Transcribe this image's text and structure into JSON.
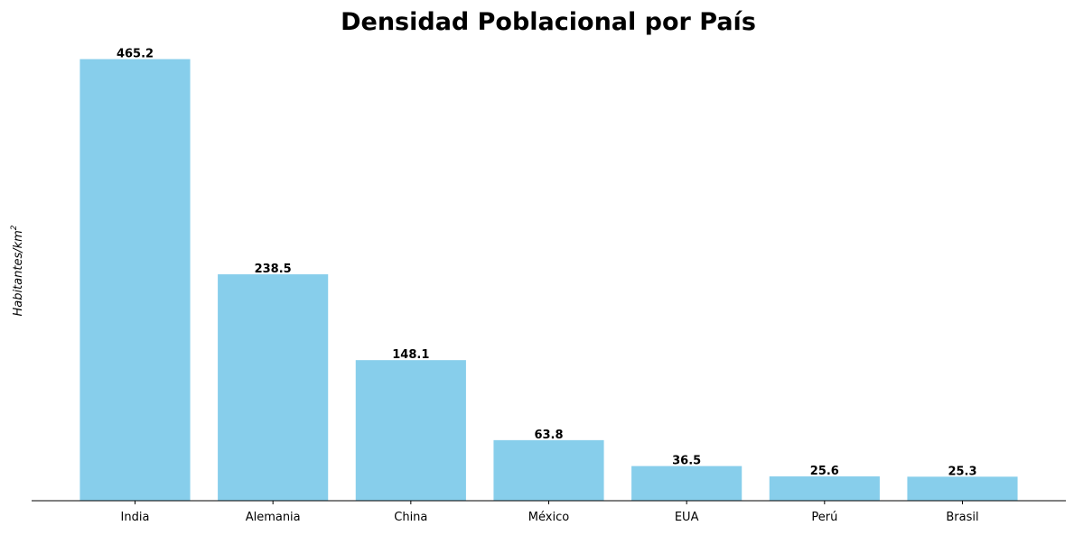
{
  "chart_data": {
    "type": "bar",
    "title": "Densidad Poblacional por País",
    "xlabel": "",
    "ylabel": {
      "text": "Habitantes/km",
      "superscript": "2"
    },
    "categories": [
      "India",
      "Alemania",
      "China",
      "México",
      "EUA",
      "Perú",
      "Brasil"
    ],
    "values": [
      465.2,
      238.5,
      148.1,
      63.8,
      36.5,
      25.6,
      25.3
    ],
    "value_labels": [
      "465.2",
      "238.5",
      "148.1",
      "63.8",
      "36.5",
      "25.6",
      "25.3"
    ],
    "ylim": [
      0,
      488.5
    ],
    "grid": false,
    "legend": false,
    "bar_color": "#87ceeb"
  }
}
